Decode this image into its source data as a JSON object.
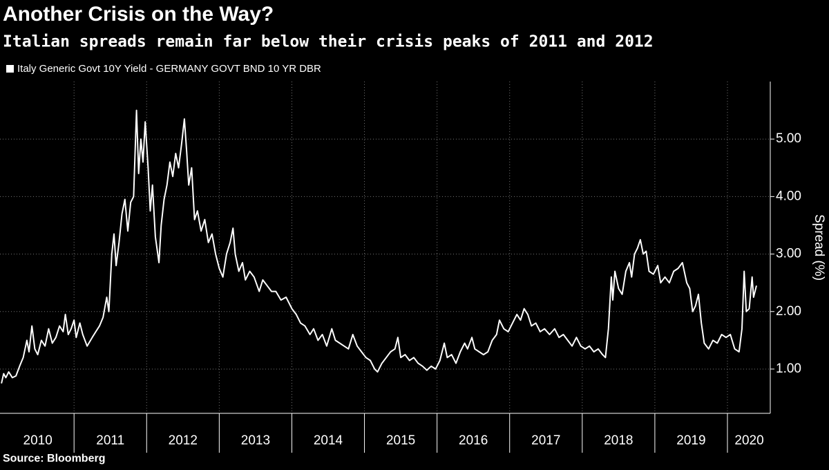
{
  "chart_data": {
    "type": "line",
    "title": "Another Crisis on the Way?",
    "subtitle": "Italian spreads remain far below their crisis peaks of 2011 and 2012",
    "y_label": "Spread (%)",
    "source": "Source: Bloomberg",
    "legend_position": "top-left",
    "grid": true,
    "background": "#000000",
    "xlim": [
      2009.98,
      2020.59
    ],
    "ylim": [
      0.23,
      6.0
    ],
    "yticks": [
      {
        "value": 1,
        "label": "1.00"
      },
      {
        "value": 2,
        "label": "2.00"
      },
      {
        "value": 3,
        "label": "3.00"
      },
      {
        "value": 4,
        "label": "4.00"
      },
      {
        "value": 5,
        "label": "5.00"
      }
    ],
    "xticks": [
      {
        "value": 2010.5,
        "label": "2010"
      },
      {
        "value": 2011.5,
        "label": "2011"
      },
      {
        "value": 2012.5,
        "label": "2012"
      },
      {
        "value": 2013.5,
        "label": "2013"
      },
      {
        "value": 2014.5,
        "label": "2014"
      },
      {
        "value": 2015.5,
        "label": "2015"
      },
      {
        "value": 2016.5,
        "label": "2016"
      },
      {
        "value": 2017.5,
        "label": "2017"
      },
      {
        "value": 2018.5,
        "label": "2018"
      },
      {
        "value": 2019.5,
        "label": "2019"
      },
      {
        "value": 2020.3,
        "label": "2020"
      }
    ],
    "xgrid": [
      2011,
      2012,
      2013,
      2014,
      2015,
      2016,
      2017,
      2018,
      2019,
      2020
    ],
    "x": [
      2010.0,
      2010.03,
      2010.06,
      2010.1,
      2010.15,
      2010.2,
      2010.25,
      2010.3,
      2010.35,
      2010.38,
      2010.42,
      2010.46,
      2010.5,
      2010.55,
      2010.6,
      2010.65,
      2010.7,
      2010.75,
      2010.8,
      2010.85,
      2010.88,
      2010.92,
      2010.96,
      2011.0,
      2011.03,
      2011.08,
      2011.12,
      2011.18,
      2011.25,
      2011.3,
      2011.35,
      2011.4,
      2011.45,
      2011.48,
      2011.52,
      2011.55,
      2011.58,
      2011.62,
      2011.66,
      2011.7,
      2011.74,
      2011.78,
      2011.82,
      2011.86,
      2011.89,
      2011.92,
      2011.95,
      2011.98,
      2012.02,
      2012.05,
      2012.08,
      2012.12,
      2012.17,
      2012.2,
      2012.24,
      2012.28,
      2012.32,
      2012.36,
      2012.4,
      2012.44,
      2012.48,
      2012.52,
      2012.55,
      2012.58,
      2012.62,
      2012.66,
      2012.7,
      2012.75,
      2012.8,
      2012.85,
      2012.9,
      2012.95,
      2013.0,
      2013.05,
      2013.1,
      2013.15,
      2013.19,
      2013.22,
      2013.27,
      2013.32,
      2013.36,
      2013.42,
      2013.48,
      2013.55,
      2013.6,
      2013.66,
      2013.72,
      2013.78,
      2013.85,
      2013.92,
      2014.0,
      2014.06,
      2014.12,
      2014.18,
      2014.25,
      2014.3,
      2014.36,
      2014.42,
      2014.48,
      2014.55,
      2014.6,
      2014.66,
      2014.72,
      2014.78,
      2014.84,
      2014.9,
      2014.96,
      2015.02,
      2015.08,
      2015.14,
      2015.18,
      2015.24,
      2015.3,
      2015.36,
      2015.42,
      2015.46,
      2015.5,
      2015.56,
      2015.62,
      2015.68,
      2015.74,
      2015.8,
      2015.86,
      2015.92,
      2015.98,
      2016.04,
      2016.1,
      2016.14,
      2016.2,
      2016.26,
      2016.32,
      2016.38,
      2016.42,
      2016.48,
      2016.52,
      2016.58,
      2016.64,
      2016.7,
      2016.76,
      2016.82,
      2016.86,
      2016.92,
      2016.98,
      2017.04,
      2017.1,
      2017.15,
      2017.2,
      2017.25,
      2017.3,
      2017.36,
      2017.42,
      2017.48,
      2017.55,
      2017.62,
      2017.68,
      2017.74,
      2017.8,
      2017.86,
      2017.92,
      2017.98,
      2018.04,
      2018.1,
      2018.16,
      2018.22,
      2018.28,
      2018.32,
      2018.36,
      2018.4,
      2018.42,
      2018.45,
      2018.5,
      2018.55,
      2018.6,
      2018.65,
      2018.68,
      2018.72,
      2018.76,
      2018.8,
      2018.84,
      2018.88,
      2018.92,
      2018.98,
      2019.04,
      2019.08,
      2019.14,
      2019.2,
      2019.26,
      2019.32,
      2019.38,
      2019.44,
      2019.48,
      2019.52,
      2019.56,
      2019.6,
      2019.64,
      2019.68,
      2019.74,
      2019.8,
      2019.86,
      2019.92,
      2019.98,
      2020.04,
      2020.1,
      2020.16,
      2020.2,
      2020.23,
      2020.26,
      2020.3,
      2020.34,
      2020.36,
      2020.4
    ],
    "series": [
      {
        "name": "Italy Generic Govt 10Y Yield - GERMANY GOVT BND 10 YR DBR",
        "color": "#ffffff",
        "values": [
          0.75,
          0.92,
          0.85,
          0.95,
          0.85,
          0.88,
          1.05,
          1.2,
          1.5,
          1.3,
          1.75,
          1.35,
          1.25,
          1.5,
          1.4,
          1.7,
          1.45,
          1.55,
          1.75,
          1.65,
          1.95,
          1.6,
          1.7,
          1.85,
          1.55,
          1.8,
          1.6,
          1.4,
          1.55,
          1.65,
          1.75,
          1.9,
          2.25,
          2.0,
          3.0,
          3.35,
          2.8,
          3.2,
          3.7,
          3.95,
          3.4,
          3.9,
          4.0,
          5.5,
          4.4,
          5.0,
          4.6,
          5.3,
          4.5,
          3.75,
          4.2,
          3.3,
          2.85,
          3.5,
          3.95,
          4.2,
          4.6,
          4.35,
          4.75,
          4.5,
          4.9,
          5.35,
          4.8,
          4.2,
          4.5,
          3.6,
          3.75,
          3.4,
          3.6,
          3.2,
          3.35,
          3.0,
          2.75,
          2.6,
          3.0,
          3.2,
          3.45,
          3.0,
          2.7,
          2.85,
          2.55,
          2.7,
          2.6,
          2.35,
          2.55,
          2.45,
          2.35,
          2.35,
          2.2,
          2.25,
          2.05,
          1.95,
          1.8,
          1.75,
          1.6,
          1.7,
          1.5,
          1.6,
          1.4,
          1.7,
          1.5,
          1.45,
          1.4,
          1.35,
          1.6,
          1.4,
          1.3,
          1.2,
          1.15,
          1.0,
          0.95,
          1.1,
          1.2,
          1.3,
          1.35,
          1.55,
          1.2,
          1.25,
          1.15,
          1.2,
          1.1,
          1.05,
          0.98,
          1.05,
          1.0,
          1.15,
          1.45,
          1.2,
          1.25,
          1.1,
          1.3,
          1.45,
          1.35,
          1.55,
          1.35,
          1.3,
          1.25,
          1.3,
          1.5,
          1.6,
          1.85,
          1.7,
          1.65,
          1.8,
          1.95,
          1.85,
          2.05,
          1.95,
          1.75,
          1.8,
          1.65,
          1.7,
          1.6,
          1.7,
          1.55,
          1.6,
          1.5,
          1.4,
          1.55,
          1.4,
          1.35,
          1.4,
          1.3,
          1.35,
          1.25,
          1.2,
          1.7,
          2.6,
          2.2,
          2.7,
          2.4,
          2.3,
          2.7,
          2.85,
          2.6,
          3.0,
          3.1,
          3.25,
          3.0,
          3.05,
          2.7,
          2.65,
          2.8,
          2.5,
          2.6,
          2.5,
          2.7,
          2.75,
          2.85,
          2.5,
          2.4,
          2.0,
          2.1,
          2.3,
          1.8,
          1.45,
          1.35,
          1.5,
          1.45,
          1.6,
          1.55,
          1.6,
          1.35,
          1.3,
          1.7,
          2.7,
          2.0,
          2.05,
          2.6,
          2.25,
          2.45
        ]
      }
    ]
  }
}
